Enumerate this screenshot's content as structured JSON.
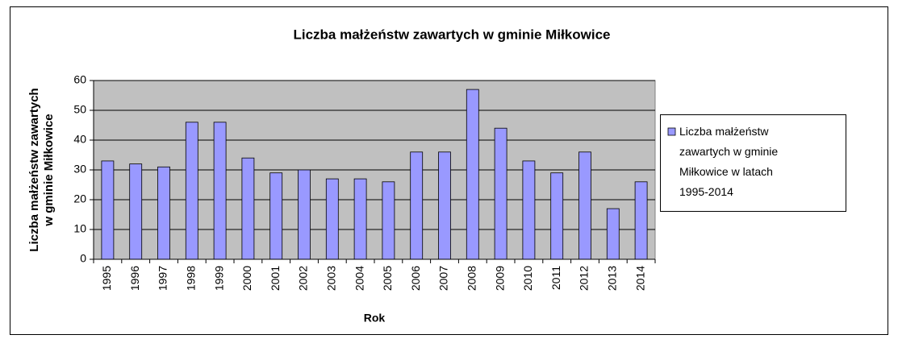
{
  "chart_data": {
    "type": "bar",
    "title": "Liczba małżeństw zawartych w gminie Miłkowice",
    "xlabel": "Rok",
    "ylabel": "Liczba małżeństw zawartych w gminie Miłkowice",
    "categories": [
      "1995",
      "1996",
      "1997",
      "1998",
      "1999",
      "2000",
      "2001",
      "2002",
      "2003",
      "2004",
      "2005",
      "2006",
      "2007",
      "2008",
      "2009",
      "2010",
      "2011",
      "2012",
      "2013",
      "2014"
    ],
    "series": [
      {
        "name": "Liczba małżeństw zawartych w gminie Miłkowice w latach 1995-2014",
        "color": "#9999ff",
        "values": [
          33,
          32,
          31,
          46,
          46,
          34,
          29,
          30,
          27,
          27,
          26,
          36,
          36,
          57,
          44,
          33,
          29,
          36,
          17,
          26
        ]
      }
    ],
    "ylim": [
      0,
      60
    ],
    "yticks": [
      0,
      10,
      20,
      30,
      40,
      50,
      60
    ],
    "grid": true,
    "legend": "right"
  }
}
